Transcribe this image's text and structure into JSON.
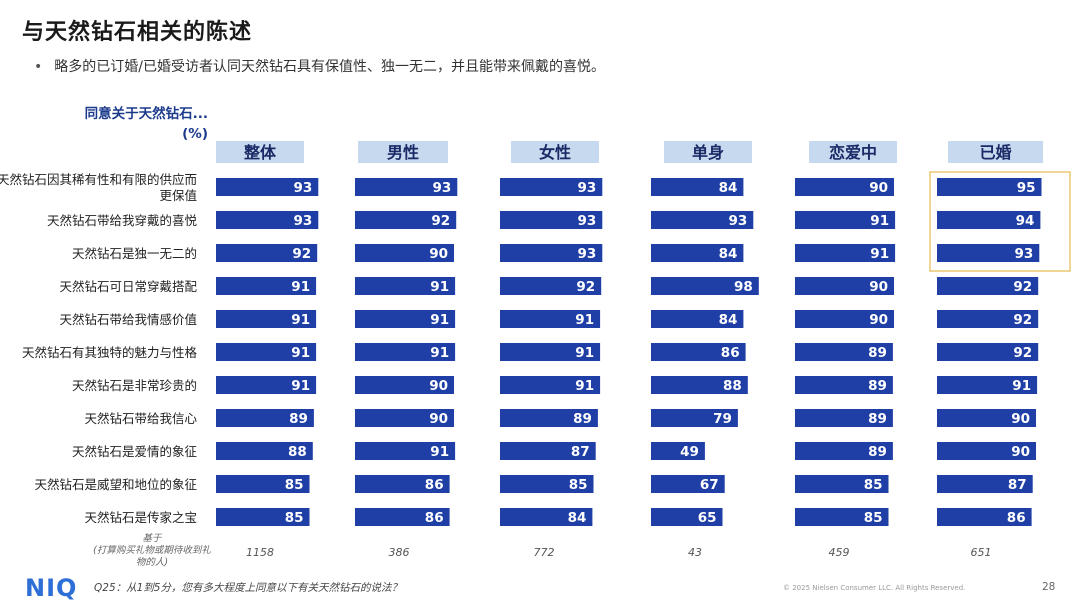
{
  "header": {
    "title": "与天然钻石相关的陈述",
    "subtitle": "略多的已订婚/已婚受访者认同天然钻石具有保值性、独一无二，并且能带来佩戴的喜悦。"
  },
  "axis_head_line1": "同意关于天然钻石...",
  "axis_head_line2": "(%)",
  "base_label_line1": "基于",
  "base_label_line2": "(打算购买礼物或期待收到礼",
  "base_label_line3": "物的人)",
  "footer": {
    "logo": "NIQ",
    "question": "Q25：从1到5分，您有多大程度上同意以下有关天然钻石的说法？",
    "copyright": "© 2025 Nielsen Consumer LLC. All Rights Reserved.",
    "page": "28"
  },
  "colors": {
    "bar": "#1f3fa6",
    "header_box": "#c7d9ee",
    "highlight": "#e8c870",
    "head_text": "#1b3a8c"
  },
  "chart_data": {
    "type": "bar",
    "orientation": "horizontal",
    "title": "与天然钻石相关的陈述",
    "xlabel": "同意关于天然钻石... (%)",
    "ylabel": "",
    "xlim": [
      0,
      100
    ],
    "categories": [
      "天然钻石因其稀有性和有限的供应而更保值",
      "天然钻石带给我穿戴的喜悦",
      "天然钻石是独一无二的",
      "天然钻石可日常穿戴搭配",
      "天然钻石带给我情感价值",
      "天然钻石有其独特的魅力与性格",
      "天然钻石是非常珍贵的",
      "天然钻石带给我信心",
      "天然钻石是爱情的象征",
      "天然钻石是威望和地位的象征",
      "天然钻石是传家之宝"
    ],
    "series": [
      {
        "name": "整体",
        "base": "1158",
        "values": [
          93,
          93,
          92,
          91,
          91,
          91,
          91,
          89,
          88,
          85,
          85
        ]
      },
      {
        "name": "男性",
        "base": "386",
        "values": [
          93,
          92,
          90,
          91,
          91,
          91,
          90,
          90,
          91,
          86,
          86
        ]
      },
      {
        "name": "女性",
        "base": "772",
        "values": [
          93,
          93,
          93,
          92,
          91,
          91,
          91,
          89,
          87,
          85,
          84
        ]
      },
      {
        "name": "单身",
        "base": "43",
        "values": [
          84,
          93,
          84,
          98,
          84,
          86,
          88,
          79,
          49,
          67,
          65
        ]
      },
      {
        "name": "恋爱中",
        "base": "459",
        "values": [
          90,
          91,
          91,
          90,
          90,
          89,
          89,
          89,
          89,
          85,
          85
        ]
      },
      {
        "name": "已婚",
        "base": "651",
        "values": [
          95,
          94,
          93,
          92,
          92,
          92,
          91,
          90,
          90,
          87,
          86
        ]
      }
    ],
    "highlight": {
      "series": "已婚",
      "rows": [
        0,
        1,
        2
      ]
    }
  }
}
